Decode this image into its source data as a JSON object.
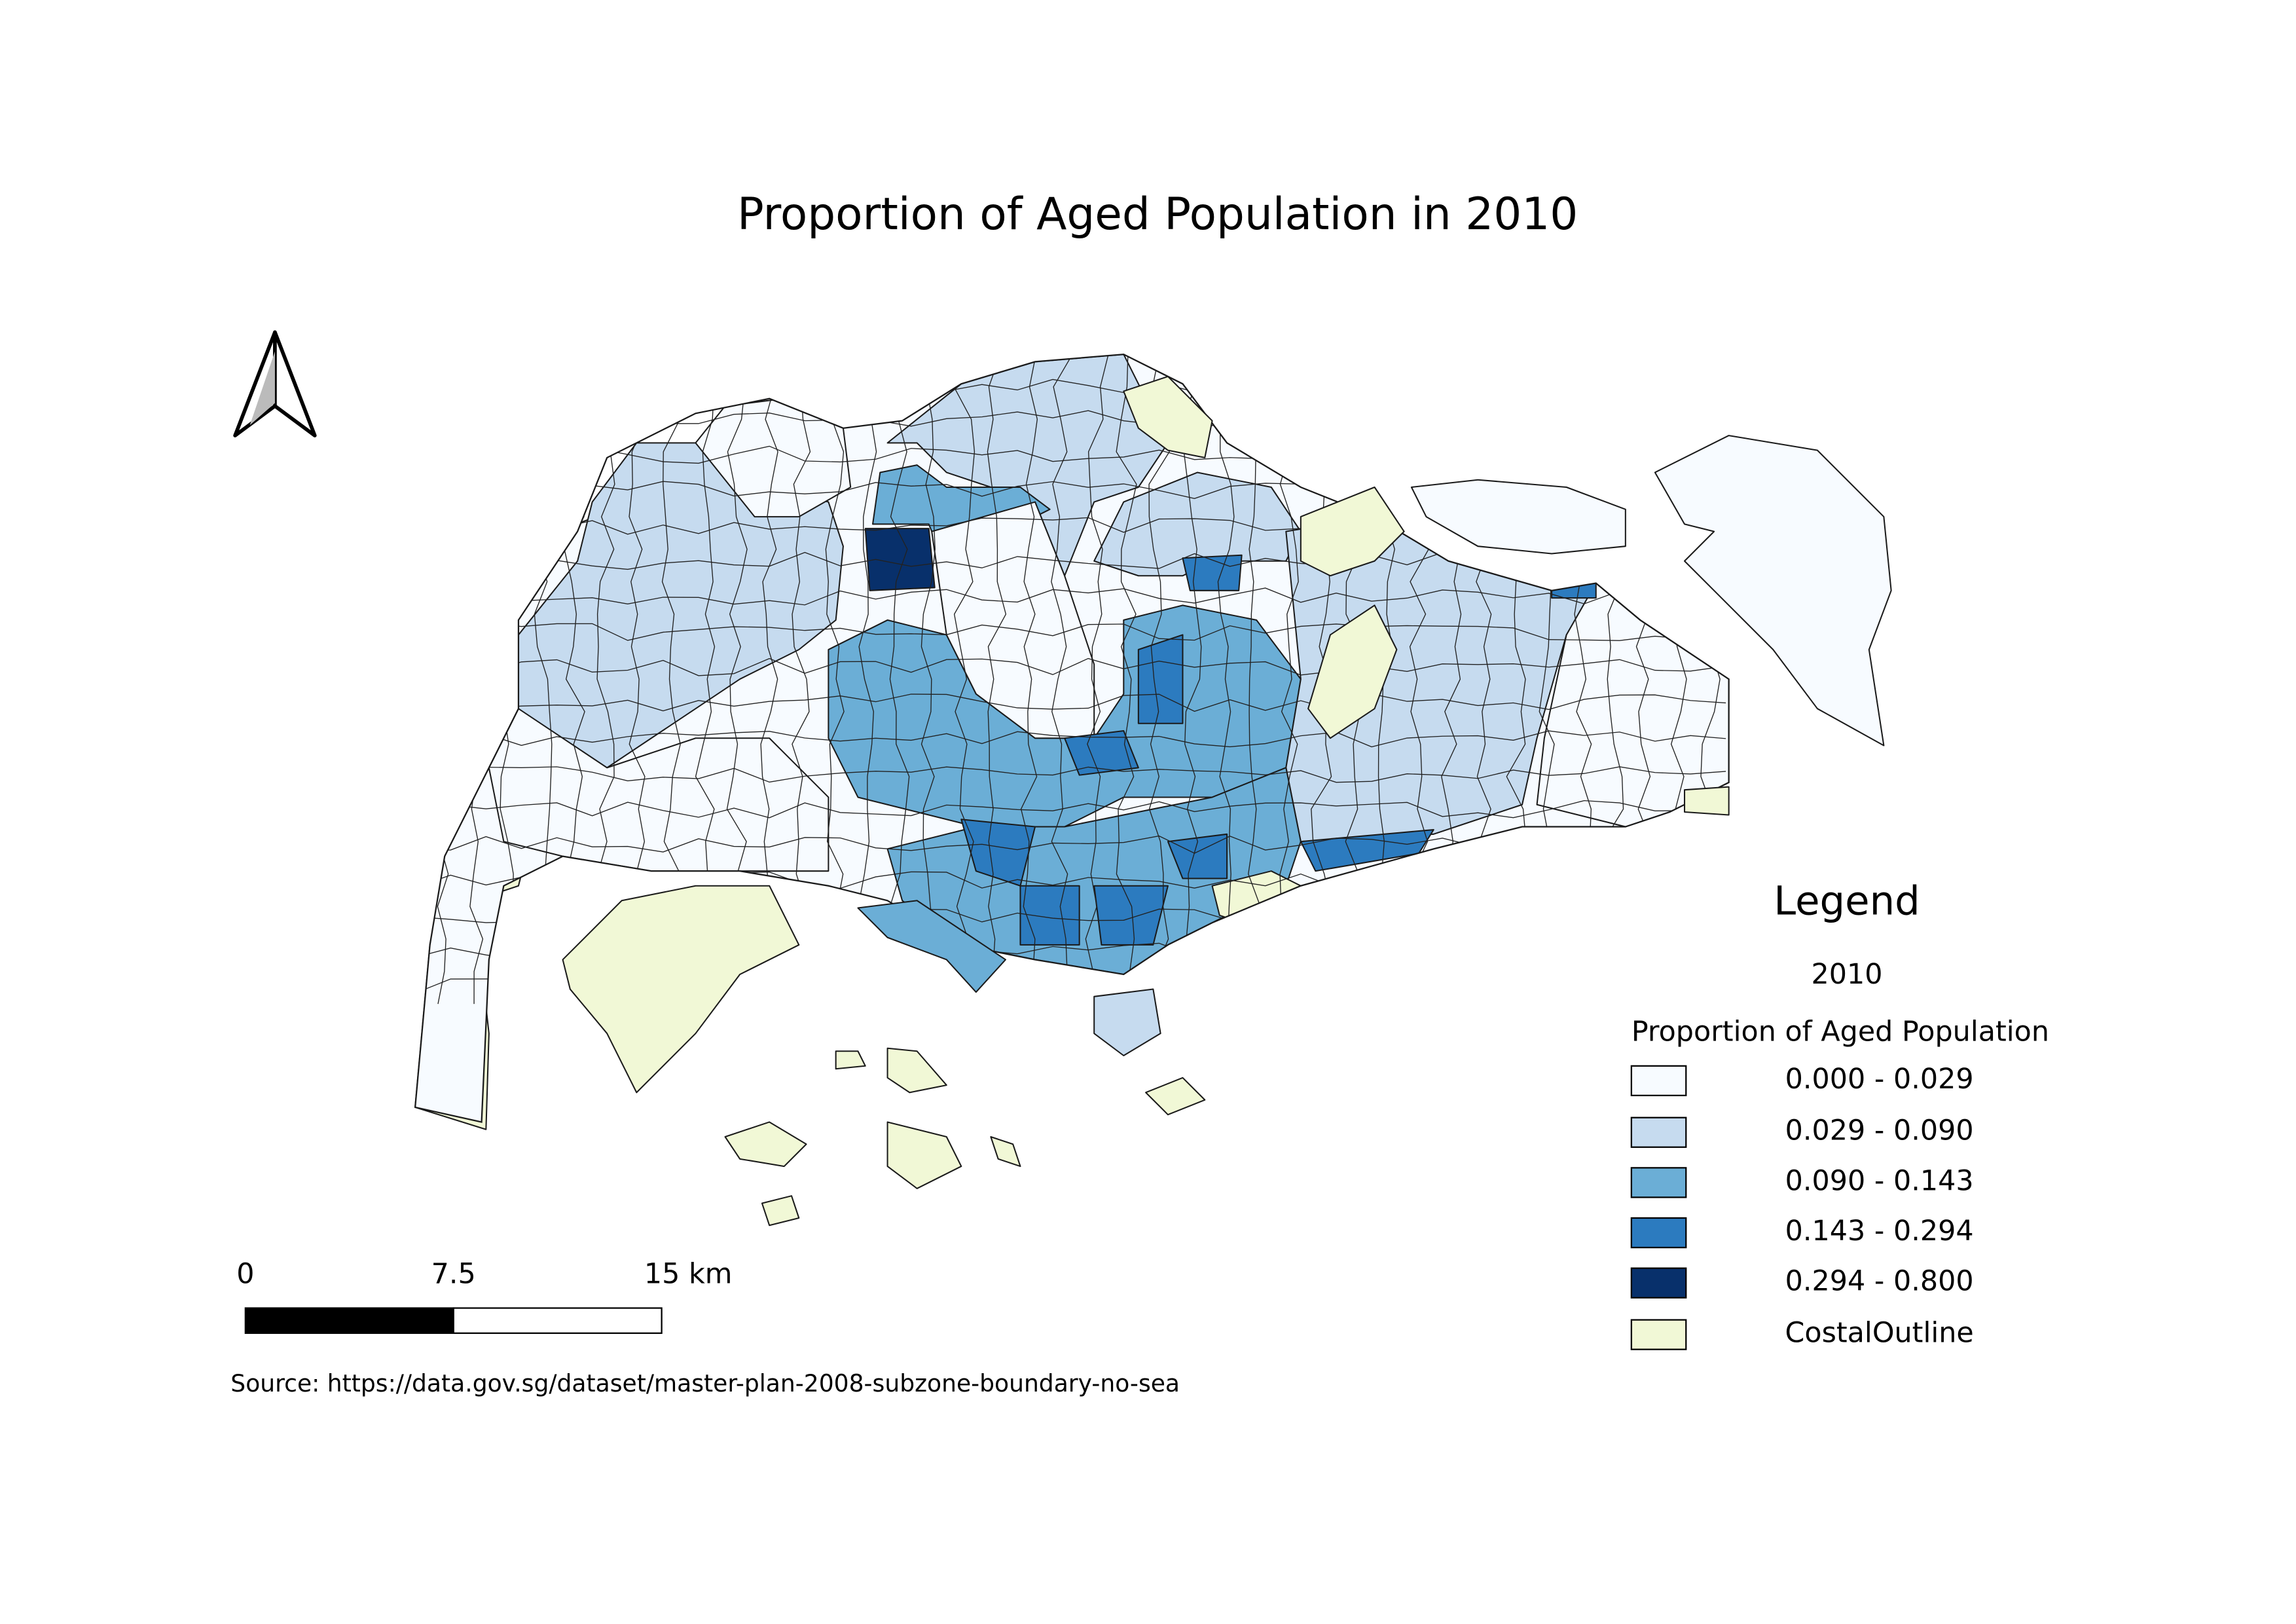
{
  "title": "Proportion of Aged Population in 2010",
  "scale_bar": {
    "labels": [
      "0",
      "7.5",
      "15 km"
    ]
  },
  "source": "Source: https://data.gov.sg/dataset/master-plan-2008-subzone-boundary-no-sea",
  "legend": {
    "title": "Legend",
    "group": "2010",
    "layer": "Proportion of Aged Population",
    "items": [
      {
        "label": "0.000 - 0.029",
        "color": "#f7fbff"
      },
      {
        "label": "0.029 - 0.090",
        "color": "#c6dbef"
      },
      {
        "label": "0.090 - 0.143",
        "color": "#6baed6"
      },
      {
        "label": "0.143 - 0.294",
        "color": "#2c7bbf"
      },
      {
        "label": "0.294 - 0.800",
        "color": "#08306b"
      },
      {
        "label": "CostalOutline",
        "color": "#f1f8d6"
      }
    ]
  }
}
